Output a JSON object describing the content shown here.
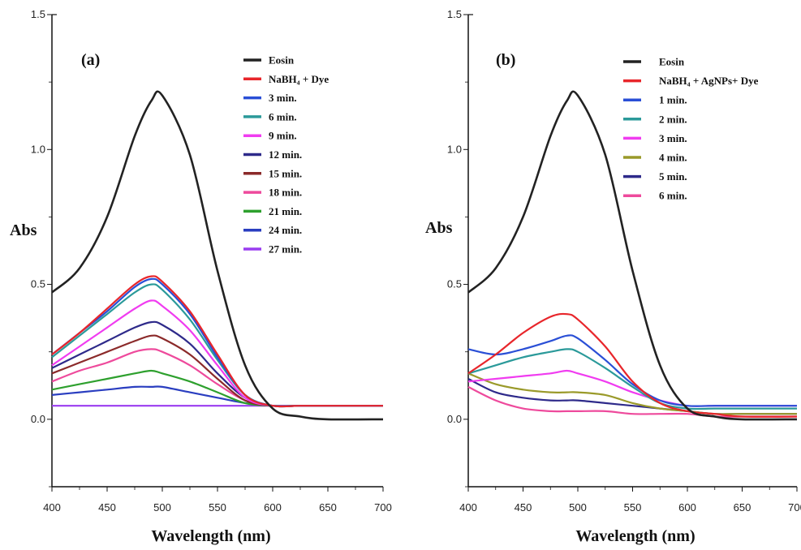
{
  "chart_data": [
    {
      "type": "line",
      "panel_label": "(a)",
      "xlabel": "Wavelength (nm)",
      "ylabel": "Abs",
      "xlim": [
        400,
        700
      ],
      "ylim": [
        -0.25,
        1.5
      ],
      "x_ticks": [
        400,
        450,
        500,
        550,
        600,
        650,
        700
      ],
      "y_ticks": [
        0.0,
        0.5,
        1.0,
        1.5
      ],
      "y_tick_labels": [
        "0.0",
        "0.5",
        "1.0",
        "1.5"
      ],
      "legend_position": "top-right",
      "x": [
        400,
        425,
        450,
        475,
        490,
        500,
        525,
        550,
        575,
        600,
        625,
        650,
        700
      ],
      "series": [
        {
          "name": "Eosin",
          "color": "#222222",
          "values": [
            0.47,
            0.56,
            0.75,
            1.05,
            1.18,
            1.2,
            0.98,
            0.55,
            0.2,
            0.04,
            0.01,
            0.0,
            0.0
          ]
        },
        {
          "name": "NaBH₄ + Dye",
          "color": "#e8262b",
          "values": [
            0.24,
            0.32,
            0.41,
            0.5,
            0.53,
            0.51,
            0.4,
            0.24,
            0.09,
            0.05,
            0.05,
            0.05,
            0.05
          ]
        },
        {
          "name": "3 min.",
          "color": "#2a4fd6",
          "values": [
            0.24,
            0.32,
            0.4,
            0.49,
            0.52,
            0.5,
            0.39,
            0.23,
            0.09,
            0.05,
            0.05,
            0.05,
            0.05
          ]
        },
        {
          "name": "6 min.",
          "color": "#2b9a9a",
          "values": [
            0.23,
            0.31,
            0.39,
            0.47,
            0.5,
            0.48,
            0.37,
            0.22,
            0.09,
            0.05,
            0.05,
            0.05,
            0.05
          ]
        },
        {
          "name": "9 min.",
          "color": "#f03cf0",
          "values": [
            0.2,
            0.27,
            0.34,
            0.41,
            0.44,
            0.42,
            0.33,
            0.2,
            0.08,
            0.05,
            0.05,
            0.05,
            0.05
          ]
        },
        {
          "name": "12 min.",
          "color": "#2e2a8a",
          "values": [
            0.19,
            0.24,
            0.29,
            0.34,
            0.36,
            0.35,
            0.28,
            0.17,
            0.08,
            0.05,
            0.05,
            0.05,
            0.05
          ]
        },
        {
          "name": "15 min.",
          "color": "#8b2a2a",
          "values": [
            0.17,
            0.21,
            0.25,
            0.29,
            0.31,
            0.3,
            0.24,
            0.15,
            0.07,
            0.05,
            0.05,
            0.05,
            0.05
          ]
        },
        {
          "name": "18 min.",
          "color": "#ee4a9c",
          "values": [
            0.14,
            0.18,
            0.21,
            0.25,
            0.26,
            0.25,
            0.2,
            0.13,
            0.07,
            0.05,
            0.05,
            0.05,
            0.05
          ]
        },
        {
          "name": "21 min.",
          "color": "#2ea02e",
          "values": [
            0.11,
            0.13,
            0.15,
            0.17,
            0.18,
            0.17,
            0.14,
            0.1,
            0.06,
            0.05,
            0.05,
            0.05,
            0.05
          ]
        },
        {
          "name": "24 min.",
          "color": "#2a3ec0",
          "values": [
            0.09,
            0.1,
            0.11,
            0.12,
            0.12,
            0.12,
            0.1,
            0.08,
            0.06,
            0.05,
            0.05,
            0.05,
            0.05
          ]
        },
        {
          "name": "27 min.",
          "color": "#9a3cf0",
          "values": [
            0.05,
            0.05,
            0.05,
            0.05,
            0.05,
            0.05,
            0.05,
            0.05,
            0.05,
            0.05,
            0.05,
            0.05,
            0.05
          ]
        }
      ]
    },
    {
      "type": "line",
      "panel_label": "(b)",
      "xlabel": "Wavelength (nm)",
      "ylabel": "Abs",
      "xlim": [
        400,
        700
      ],
      "ylim": [
        -0.25,
        1.5
      ],
      "x_ticks": [
        400,
        450,
        500,
        550,
        600,
        650,
        700
      ],
      "y_ticks": [
        0.0,
        0.5,
        1.0,
        1.5
      ],
      "y_tick_labels": [
        "0.0",
        "0.5",
        "1.0",
        "1.5"
      ],
      "legend_position": "top-right",
      "x": [
        400,
        425,
        450,
        475,
        490,
        500,
        525,
        550,
        575,
        600,
        625,
        650,
        700
      ],
      "series": [
        {
          "name": "Eosin",
          "color": "#222222",
          "values": [
            0.47,
            0.56,
            0.75,
            1.05,
            1.18,
            1.2,
            0.98,
            0.55,
            0.2,
            0.04,
            0.01,
            0.0,
            0.0
          ]
        },
        {
          "name": "NaBH₄ + AgNPs+ Dye",
          "color": "#e8262b",
          "values": [
            0.17,
            0.24,
            0.32,
            0.38,
            0.39,
            0.37,
            0.27,
            0.14,
            0.06,
            0.03,
            0.02,
            0.01,
            0.01
          ]
        },
        {
          "name": "1 min.",
          "color": "#2a4fd6",
          "values": [
            0.26,
            0.24,
            0.26,
            0.29,
            0.31,
            0.3,
            0.22,
            0.13,
            0.07,
            0.05,
            0.05,
            0.05,
            0.05
          ]
        },
        {
          "name": "2 min.",
          "color": "#2b9a9a",
          "values": [
            0.17,
            0.2,
            0.23,
            0.25,
            0.26,
            0.25,
            0.19,
            0.12,
            0.06,
            0.04,
            0.04,
            0.04,
            0.04
          ]
        },
        {
          "name": "3 min.",
          "color": "#f03cf0",
          "values": [
            0.14,
            0.15,
            0.16,
            0.17,
            0.18,
            0.17,
            0.14,
            0.1,
            0.07,
            0.05,
            0.05,
            0.05,
            0.05
          ]
        },
        {
          "name": "4 min.",
          "color": "#9a9a2a",
          "values": [
            0.17,
            0.13,
            0.11,
            0.1,
            0.1,
            0.1,
            0.09,
            0.06,
            0.04,
            0.03,
            0.02,
            0.02,
            0.02
          ]
        },
        {
          "name": "5 min.",
          "color": "#2e2a8a",
          "values": [
            0.15,
            0.1,
            0.08,
            0.07,
            0.07,
            0.07,
            0.06,
            0.05,
            0.04,
            0.03,
            0.02,
            0.02,
            0.02
          ]
        },
        {
          "name": "6 min.",
          "color": "#ee4a9c",
          "values": [
            0.12,
            0.07,
            0.04,
            0.03,
            0.03,
            0.03,
            0.03,
            0.02,
            0.02,
            0.02,
            0.01,
            0.01,
            0.01
          ]
        }
      ]
    }
  ]
}
